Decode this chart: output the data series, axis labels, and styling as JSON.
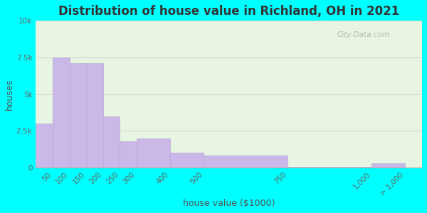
{
  "title": "Distribution of house value in Richland, OH in 2021",
  "xlabel": "house value ($1000)",
  "ylabel": "houses",
  "background_outer": "#00FFFF",
  "background_inner": "#e8f5e2",
  "bar_color": "#c9b8e8",
  "bar_edge_color": "#b8a8d8",
  "bin_edges": [
    0,
    50,
    100,
    150,
    200,
    250,
    300,
    400,
    500,
    750,
    1000,
    1100
  ],
  "values": [
    3000,
    7500,
    7100,
    7100,
    3500,
    1800,
    2000,
    1000,
    800,
    30,
    300
  ],
  "xtick_positions": [
    50,
    100,
    150,
    200,
    250,
    300,
    400,
    500,
    750,
    1000,
    1100
  ],
  "xtick_labels": [
    "50",
    "100",
    "150",
    "200",
    "250",
    "300",
    "400",
    "500",
    "750",
    "1,000",
    "> 1,000"
  ],
  "ylim": [
    0,
    10000
  ],
  "yticks": [
    0,
    2500,
    5000,
    7500,
    10000
  ],
  "yticklabels": [
    "0",
    "2.5k",
    "5k",
    "7.5k",
    "10k"
  ],
  "xlim": [
    0,
    1150
  ],
  "title_fontsize": 12,
  "axis_label_fontsize": 9,
  "tick_fontsize": 7.5,
  "watermark_text": "City-Data.com"
}
